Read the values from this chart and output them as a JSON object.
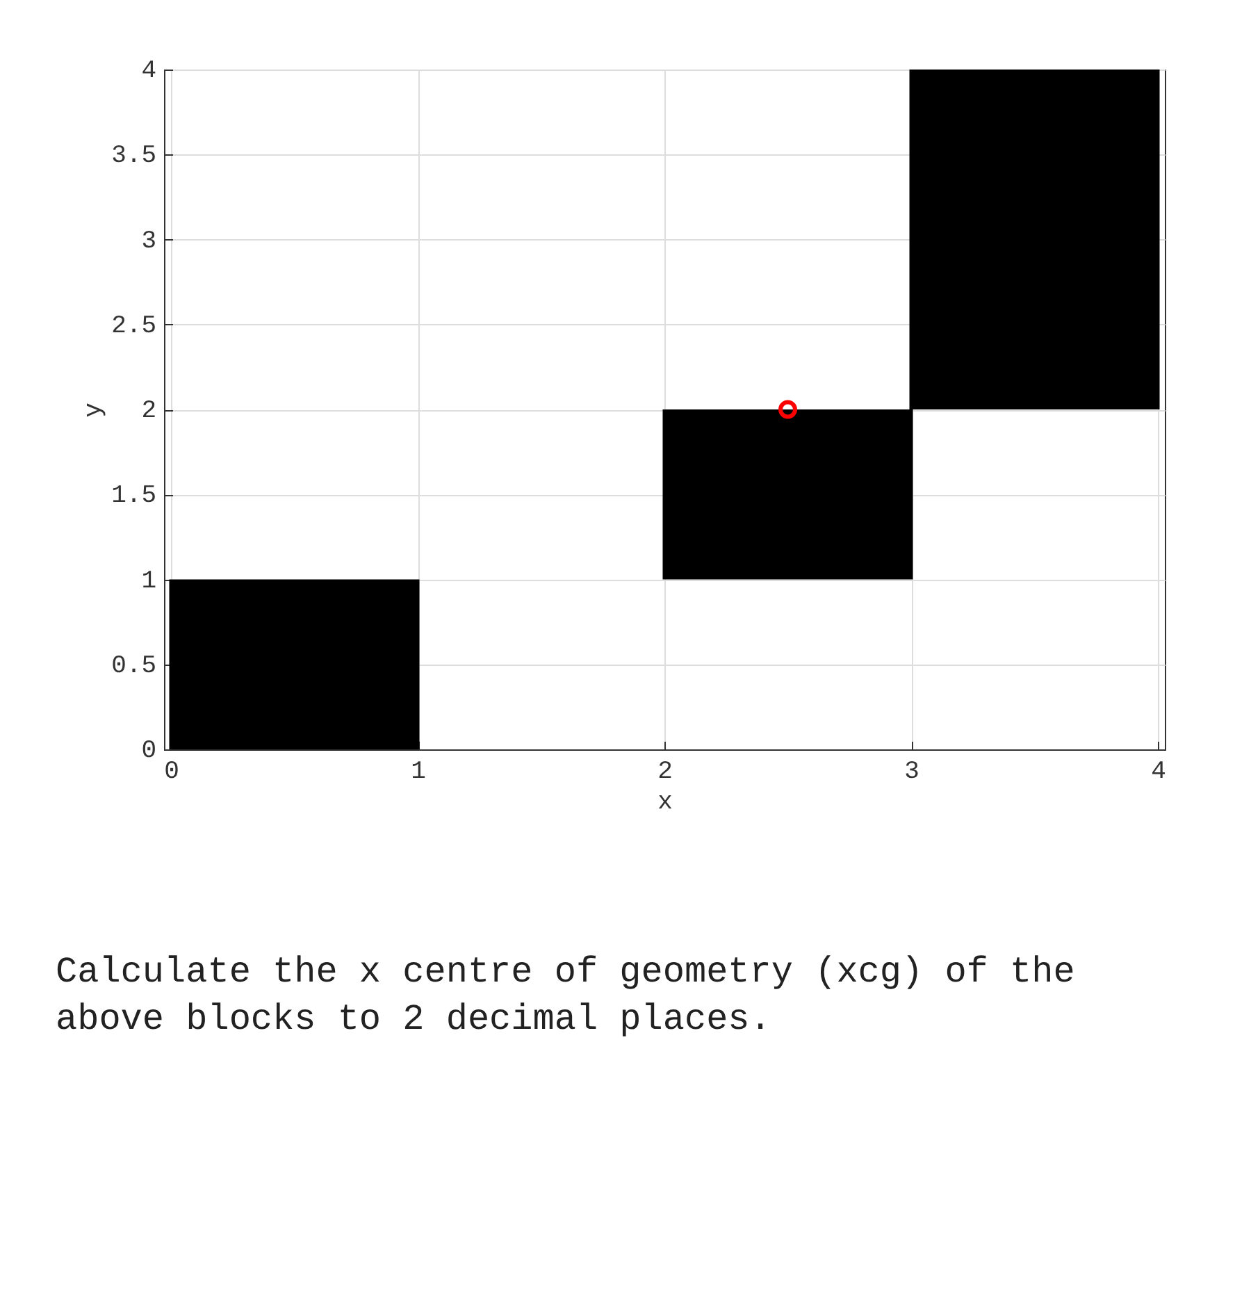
{
  "chart_data": {
    "type": "bar",
    "xlabel": "x",
    "ylabel": "y",
    "x": [
      0.5,
      2.5,
      3.5
    ],
    "series": [
      {
        "type": "bar",
        "color": "#000000",
        "base": [
          0,
          1,
          2
        ],
        "values": [
          1,
          1,
          2
        ]
      },
      {
        "type": "scatter",
        "color": "#ff0000",
        "x": [
          2.5
        ],
        "values": [
          2
        ],
        "marker": "circle"
      }
    ],
    "xlim": [
      0,
      4
    ],
    "ylim": [
      0,
      4
    ],
    "xticks": [
      0,
      1,
      2,
      3,
      4
    ],
    "yticks": [
      0,
      0.5,
      1,
      1.5,
      2,
      2.5,
      3,
      3.5,
      4
    ],
    "grid": true,
    "annotations": [
      "Calculate the x centre of geometry (xcg) of the above blocks to 2 decimal places."
    ]
  }
}
